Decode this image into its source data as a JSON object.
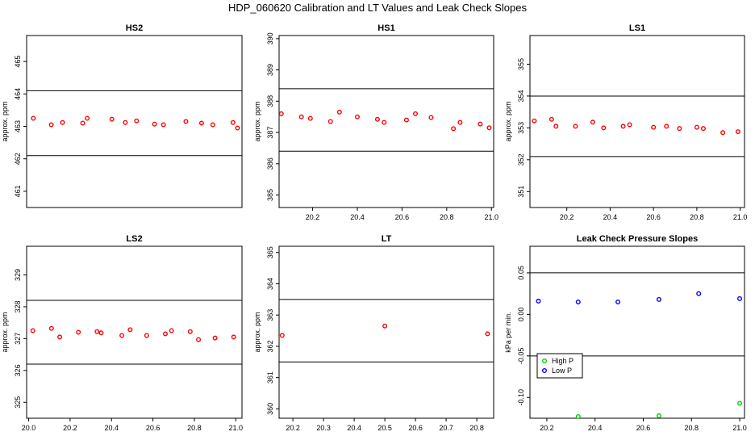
{
  "title": "HDP_060620 Calibration and LT Values and Leak Check Slopes",
  "chart_data": [
    {
      "type": "scatter",
      "title": "HS2",
      "ylabel": "approx. ppm",
      "xlim": [
        20.05,
        21.01
      ],
      "ylim": [
        460.5,
        465.8
      ],
      "xticks": [],
      "yticks": [
        461,
        462,
        463,
        464,
        465
      ],
      "hlines": [
        462.1,
        464.1
      ],
      "marker_color": "#ff0000",
      "series": [
        {
          "x": [
            20.08,
            20.16,
            20.21,
            20.3,
            20.32,
            20.43,
            20.49,
            20.54,
            20.62,
            20.66,
            20.76,
            20.83,
            20.88,
            20.97,
            20.99
          ],
          "y": [
            463.25,
            463.05,
            463.12,
            463.1,
            463.25,
            463.22,
            463.12,
            463.17,
            463.07,
            463.05,
            463.15,
            463.1,
            463.05,
            463.12,
            462.95
          ]
        }
      ]
    },
    {
      "type": "scatter",
      "title": "HS1",
      "ylabel": "approx. ppm",
      "xlim": [
        20.05,
        21.01
      ],
      "ylim": [
        384.6,
        390.1
      ],
      "xticks": [
        20.2,
        20.4,
        20.6,
        20.8,
        21.0
      ],
      "xticklabels": [
        "20.2",
        "20.4",
        "20.6",
        "20.8",
        "21.0"
      ],
      "yticks": [
        385,
        386,
        387,
        388,
        389,
        390
      ],
      "hlines": [
        386.4,
        388.4
      ],
      "marker_color": "#ff0000",
      "series": [
        {
          "x": [
            20.06,
            20.15,
            20.19,
            20.28,
            20.32,
            20.4,
            20.49,
            20.52,
            20.62,
            20.66,
            20.73,
            20.83,
            20.86,
            20.95,
            20.99
          ],
          "y": [
            387.6,
            387.5,
            387.45,
            387.35,
            387.65,
            387.5,
            387.42,
            387.32,
            387.4,
            387.6,
            387.48,
            387.12,
            387.32,
            387.27,
            387.15
          ]
        }
      ]
    },
    {
      "type": "scatter",
      "title": "LS1",
      "ylabel": "approx. ppm",
      "xlim": [
        20.03,
        21.02
      ],
      "ylim": [
        350.5,
        355.9
      ],
      "xticks": [
        20.2,
        20.4,
        20.6,
        20.8,
        21.0
      ],
      "xticklabels": [
        "20.2",
        "20.4",
        "20.6",
        "20.8",
        "21.0"
      ],
      "yticks": [
        351,
        352,
        353,
        354,
        355
      ],
      "hlines": [
        352.1,
        354.0
      ],
      "marker_color": "#ff0000",
      "series": [
        {
          "x": [
            20.05,
            20.13,
            20.15,
            20.24,
            20.32,
            20.37,
            20.46,
            20.49,
            20.6,
            20.66,
            20.72,
            20.8,
            20.83,
            20.92,
            20.99
          ],
          "y": [
            353.22,
            353.27,
            353.05,
            353.05,
            353.18,
            353.0,
            353.05,
            353.1,
            353.02,
            353.05,
            352.98,
            353.02,
            352.98,
            352.85,
            352.88
          ]
        }
      ]
    },
    {
      "type": "scatter",
      "title": "LS2",
      "ylabel": "approx. ppm",
      "xlim": [
        19.99,
        21.03
      ],
      "ylim": [
        324.5,
        329.9
      ],
      "xticks": [
        20.0,
        20.2,
        20.4,
        20.6,
        20.8,
        21.0
      ],
      "xticklabels": [
        "20.0",
        "20.2",
        "20.4",
        "20.6",
        "20.8",
        "21.0"
      ],
      "yticks": [
        325,
        326,
        327,
        328,
        329
      ],
      "hlines": [
        326.2,
        328.2
      ],
      "marker_color": "#ff0000",
      "series": [
        {
          "x": [
            20.02,
            20.11,
            20.15,
            20.24,
            20.33,
            20.35,
            20.45,
            20.49,
            20.57,
            20.66,
            20.69,
            20.78,
            20.82,
            20.9,
            20.99
          ],
          "y": [
            327.25,
            327.32,
            327.05,
            327.2,
            327.22,
            327.18,
            327.1,
            327.28,
            327.1,
            327.15,
            327.25,
            327.22,
            326.97,
            327.02,
            327.05
          ]
        }
      ]
    },
    {
      "type": "scatter",
      "title": "LT",
      "ylabel": "approx. ppm",
      "xlim": [
        20.155,
        20.855
      ],
      "ylim": [
        359.7,
        365.2
      ],
      "xticks": [
        20.2,
        20.3,
        20.4,
        20.5,
        20.6,
        20.7,
        20.8
      ],
      "xticklabels": [
        "20.2",
        "20.3",
        "20.4",
        "20.5",
        "20.6",
        "20.7",
        "20.8"
      ],
      "yticks": [
        360,
        361,
        362,
        363,
        364,
        365
      ],
      "hlines": [
        361.5,
        363.5
      ],
      "marker_color": "#ff0000",
      "series": [
        {
          "x": [
            20.165,
            20.5,
            20.835
          ],
          "y": [
            362.35,
            362.65,
            362.4
          ]
        }
      ]
    },
    {
      "type": "scatter",
      "title": "Leak Check Pressure Slopes",
      "ylabel": "kPa per min.",
      "xlim": [
        20.13,
        21.02
      ],
      "ylim": [
        -0.125,
        0.082
      ],
      "xticks": [
        20.2,
        20.4,
        20.6,
        20.8,
        21.0
      ],
      "xticklabels": [
        "20.2",
        "20.4",
        "20.6",
        "20.8",
        "21.0"
      ],
      "yticks": [
        -0.1,
        -0.05,
        0.0,
        0.05
      ],
      "yticklabels": [
        "-0.10",
        "-0.05",
        "0.00",
        "0.05"
      ],
      "hlines": [
        -0.05,
        0.05
      ],
      "legend": {
        "position": "bottom-left",
        "entries": [
          "High P",
          "Low P"
        ]
      },
      "series": [
        {
          "name": "High P",
          "color": "#00cc00",
          "x": [
            20.33,
            20.665,
            21.0
          ],
          "y": [
            -0.123,
            -0.122,
            -0.107
          ]
        },
        {
          "name": "Low P",
          "color": "#0000ff",
          "x": [
            20.165,
            20.33,
            20.495,
            20.665,
            20.83,
            21.0
          ],
          "y": [
            0.016,
            0.015,
            0.015,
            0.018,
            0.025,
            0.019
          ]
        }
      ]
    }
  ]
}
